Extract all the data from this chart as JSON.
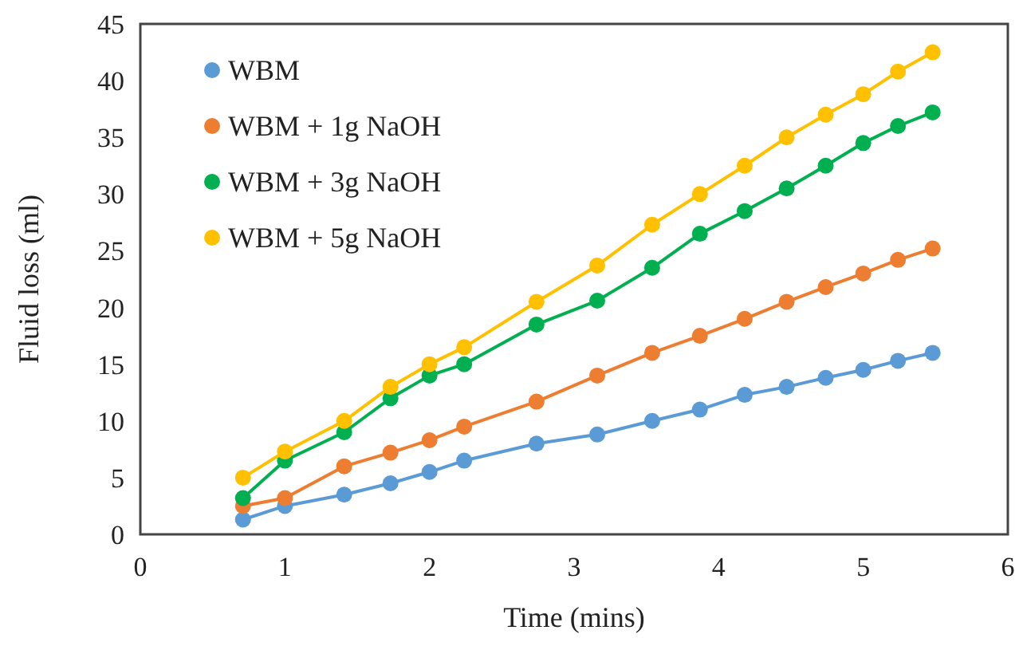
{
  "chart_data": {
    "type": "line",
    "xlabel": "Time (mins)",
    "ylabel": "Fluid loss (ml)",
    "x": [
      0.71,
      1,
      1.41,
      1.73,
      2,
      2.24,
      2.74,
      3.16,
      3.54,
      3.87,
      4.18,
      4.47,
      4.74,
      5,
      5.24,
      5.48
    ],
    "series": [
      {
        "name": "WBM",
        "color": "#5b9bd5",
        "values": [
          1.3,
          2.5,
          3.5,
          4.5,
          5.5,
          6.5,
          8,
          8.8,
          10,
          11,
          12.3,
          13,
          13.8,
          14.5,
          15.3,
          16
        ]
      },
      {
        "name": "WBM + 1g NaOH",
        "color": "#ed7d31",
        "values": [
          2.5,
          3.2,
          6,
          7.2,
          8.3,
          9.5,
          11.7,
          14,
          16,
          17.5,
          19,
          20.5,
          21.8,
          23,
          24.2,
          25.2
        ]
      },
      {
        "name": "WBM + 3g NaOH",
        "color": "#00b050",
        "values": [
          3.2,
          6.5,
          9,
          12,
          14,
          15,
          18.5,
          20.6,
          23.5,
          26.5,
          28.5,
          30.5,
          32.5,
          34.5,
          36,
          37.2
        ]
      },
      {
        "name": "WBM + 5g NaOH",
        "color": "#ffc000",
        "values": [
          5,
          7.3,
          10,
          13,
          15,
          16.5,
          20.5,
          23.7,
          27.3,
          30,
          32.5,
          35,
          37,
          38.8,
          40.8,
          42.5
        ]
      }
    ],
    "xlim": [
      0,
      6
    ],
    "xticks": [
      0,
      1,
      2,
      3,
      4,
      5,
      6
    ],
    "ylim": [
      0,
      45
    ],
    "yticks": [
      0,
      5,
      10,
      15,
      20,
      25,
      30,
      35,
      40,
      45
    ],
    "grid": false,
    "legend": "top left",
    "marker": "circle",
    "line_style": "solid"
  }
}
